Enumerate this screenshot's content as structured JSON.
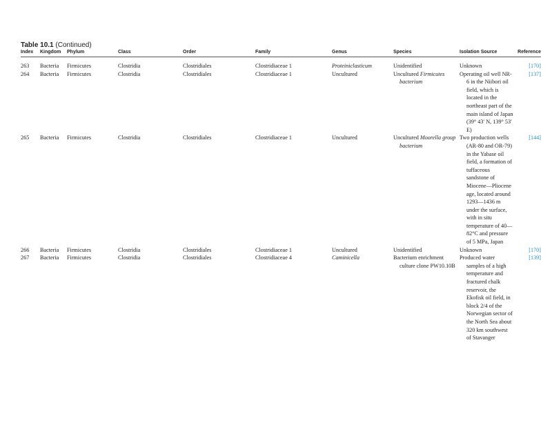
{
  "table": {
    "title_bold": "Table 10.1",
    "title_rest": "(Continued)",
    "headers": [
      "Index",
      "Kingdom",
      "Phylum",
      "Class",
      "Order",
      "Family",
      "Genus",
      "Species",
      "Isolation Source",
      "Reference"
    ],
    "link_color": "#2a8fc0",
    "rows": [
      {
        "index": "263",
        "kingdom": "Bacteria",
        "phylum": "Firmicutes",
        "class": "Clostridia",
        "order": "Clostridiales",
        "family": "Clostridiaceae 1",
        "genus": "Proteiniclasticum",
        "genus_italic": true,
        "species_plain": "Unidentified",
        "species_italic": "",
        "isolation": "Unknown",
        "reference": "[170]"
      },
      {
        "index": "264",
        "kingdom": "Bacteria",
        "phylum": "Firmicutes",
        "class": "Clostridia",
        "order": "Clostridiales",
        "family": "Clostridiaceae 1",
        "genus": "Uncultured",
        "genus_italic": false,
        "species_plain": "Uncultured ",
        "species_italic": "Firmicutes bacterium",
        "isolation": "Operating oil well NR-6 in the Niibori oil field, which is located in the northeast part of the main island of Japan (39° 43′ N, 139° 53′ E)",
        "reference": "[137]"
      },
      {
        "index": "265",
        "kingdom": "Bacteria",
        "phylum": "Firmicutes",
        "class": "Clostridia",
        "order": "Clostridiales",
        "family": "Clostridiaceae 1",
        "genus": "Uncultured",
        "genus_italic": false,
        "species_plain": "Uncultured ",
        "species_italic": "Moorella group bacterium",
        "isolation": "Two production wells (AR-80 and OR-79) in the Yabase oil field, a formation of tuffaceous sandstone of Miocene—Pliocene age, located around 1293—1436 m under the surface, with in situ temperature of 40—82°C and pressure of 5 MPa, Japan",
        "reference": "[144]"
      },
      {
        "index": "266",
        "kingdom": "Bacteria",
        "phylum": "Firmicutes",
        "class": "Clostridia",
        "order": "Clostridiales",
        "family": "Clostridiaceae 1",
        "genus": "Uncultured",
        "genus_italic": false,
        "species_plain": "Unidentified",
        "species_italic": "",
        "isolation": "Unknown",
        "reference": "[170]"
      },
      {
        "index": "267",
        "kingdom": "Bacteria",
        "phylum": "Firmicutes",
        "class": "Clostridia",
        "order": "Clostridiales",
        "family": "Clostridiaceae 4",
        "genus": "Caminicella",
        "genus_italic": true,
        "species_plain": "Bacterium enrichment culture clone PW10.10B",
        "species_italic": "",
        "isolation": "Produced water samples of a high temperature and fractured chalk reservoir, the Ekofisk oil field, in block 2/4 of the Norwegian sector of the North Sea about 320 km southwest of Stavanger",
        "reference": "[139]"
      }
    ]
  }
}
